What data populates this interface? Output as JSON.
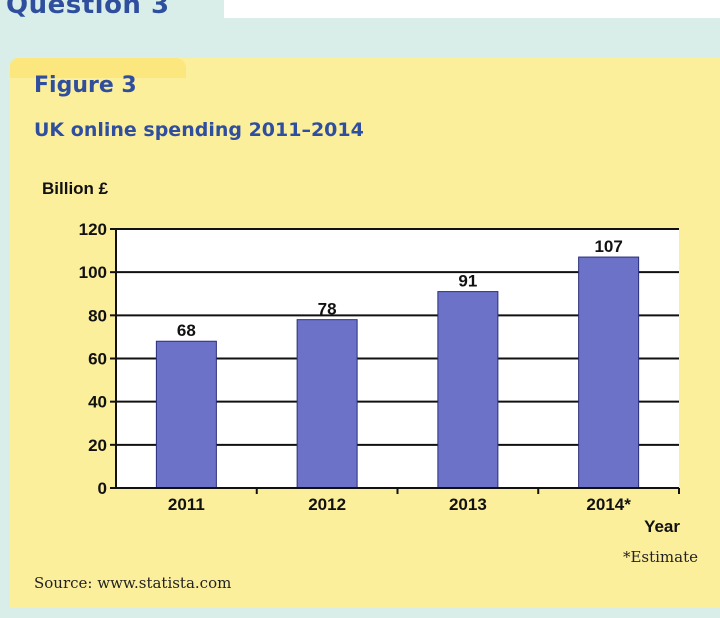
{
  "header": {
    "question": "Question 3"
  },
  "figure": {
    "label": "Figure 3",
    "title": "UK online spending 2011–2014",
    "footnote": "*Estimate",
    "source": "Source: www.statista.com"
  },
  "colors": {
    "heading": "#2f4f9e",
    "panel": "#fcef9c",
    "background": "#d9eee8",
    "bar": "#6b72c8"
  },
  "chart_data": {
    "type": "bar",
    "categories": [
      "2011",
      "2012",
      "2013",
      "2014*"
    ],
    "values": [
      68,
      78,
      91,
      107
    ],
    "data_labels": [
      "68",
      "78",
      "91",
      "107"
    ],
    "xlabel": "Year",
    "ylabel": "Billion £",
    "ylim": [
      0,
      120
    ],
    "yticks": [
      "0",
      "20",
      "40",
      "60",
      "80",
      "100",
      "120"
    ],
    "grid": true,
    "legend": "none"
  }
}
